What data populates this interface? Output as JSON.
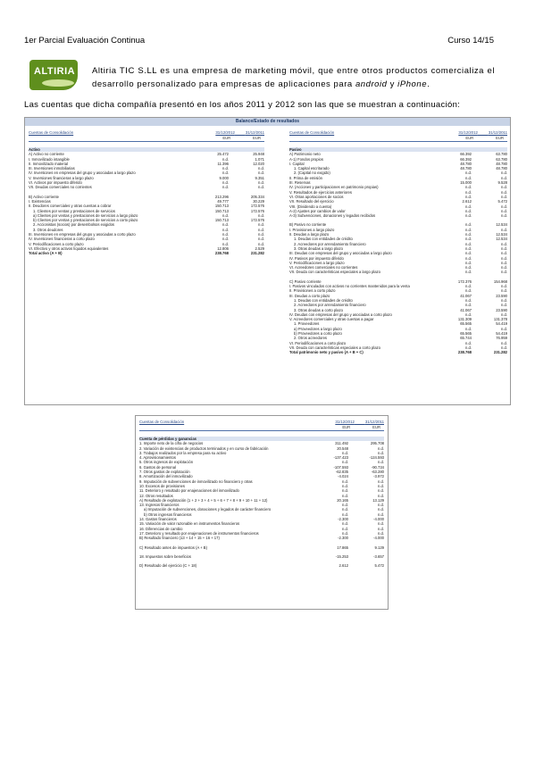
{
  "header": {
    "left": "1er Parcial Evaluación Continua",
    "right": "Curso 14/15"
  },
  "logo": {
    "text": "ALTIRIA"
  },
  "intro": {
    "part1": "Altiria TIC S.LL es una empresa de marketing móvil, que entre otros productos comercializa el desarrollo personalizado para empresas de aplicaciones para ",
    "android": "android",
    "and": " y ",
    "iphone": "iPhone",
    "end": "."
  },
  "lead": "Las cuentas que dicha compañía presentó en los años 2011 y 2012 son las que se muestran a continuación:",
  "balance": {
    "title": "Balance/Estado de resultados",
    "left": {
      "head_label": "Cuentas de Consolidación",
      "d1": "31/12/2012",
      "d2": "31/12/2011",
      "u1": "EUR",
      "u2": "EUR",
      "rows": [
        {
          "l": "Activo",
          "a": "",
          "b": "",
          "t": "sect"
        },
        {
          "l": "A) Activo no corriente",
          "a": "25.472",
          "b": "25.948",
          "t": ""
        },
        {
          "l": "I. Inmovilizado intangible",
          "a": "n.d.",
          "b": "1.071",
          "t": ""
        },
        {
          "l": "II. Inmovilizado material",
          "a": "11.396",
          "b": "12.020",
          "t": ""
        },
        {
          "l": "III. Inversiones inmobiliarias",
          "a": "n.d.",
          "b": "n.d.",
          "t": ""
        },
        {
          "l": "IV. Inversiones en empresas del grupo y asociadas a largo plazo",
          "a": "n.d.",
          "b": "n.d.",
          "t": ""
        },
        {
          "l": "V. Inversiones financieras a largo plazo",
          "a": "9.000",
          "b": "9.351",
          "t": ""
        },
        {
          "l": "VI. Activos por impuesto diferido",
          "a": "n.d.",
          "b": "n.d.",
          "t": ""
        },
        {
          "l": "VII. Deudas comerciales no corrientes",
          "a": "n.d.",
          "b": "n.d.",
          "t": ""
        },
        {
          "l": "B) Activo corriente",
          "a": "213.296",
          "b": "205.334",
          "t": "gap"
        },
        {
          "l": "I. Existencias",
          "a": "49.777",
          "b": "30.229",
          "t": ""
        },
        {
          "l": "II. Deudores comerciales y otras cuentas a cobrar",
          "a": "150.713",
          "b": "172.576",
          "t": ""
        },
        {
          "l": "1. Clientes por ventas y prestaciones de servicios",
          "a": "150.713",
          "b": "172.576",
          "t": "ind"
        },
        {
          "l": "a) Clientes por ventas y prestaciones de servicios a largo plazo",
          "a": "n.d.",
          "b": "n.d.",
          "t": "ind"
        },
        {
          "l": "b) Clientes por ventas y prestaciones de servicios a corto plazo",
          "a": "150.713",
          "b": "172.576",
          "t": "ind"
        },
        {
          "l": "2. Accionistas (socios) por desembolsos exigidos",
          "a": "n.d.",
          "b": "n.d.",
          "t": "ind"
        },
        {
          "l": "3. Otros deudores",
          "a": "n.d.",
          "b": "n.d.",
          "t": "ind"
        },
        {
          "l": "III. Inversiones en empresas del grupo y asociadas a corto plazo",
          "a": "n.d.",
          "b": "n.d.",
          "t": ""
        },
        {
          "l": "IV. Inversiones financieras a corto plazo",
          "a": "n.d.",
          "b": "n.d.",
          "t": ""
        },
        {
          "l": "V. Periodificaciones a corto plazo",
          "a": "n.d.",
          "b": "n.d.",
          "t": ""
        },
        {
          "l": "VI. Efectivo y otros activos líquidos equivalentes",
          "a": "12.806",
          "b": "2.529",
          "t": ""
        },
        {
          "l": "Total activo (A + B)",
          "a": "238.768",
          "b": "231.282",
          "t": "bold"
        }
      ]
    },
    "right": {
      "head_label": "Cuentas de Consolidación",
      "d1": "31/12/2012",
      "d2": "31/12/2011",
      "u1": "EUR",
      "u2": "EUR",
      "rows": [
        {
          "l": "Pasivo",
          "a": "",
          "b": "",
          "t": "sect"
        },
        {
          "l": "A) Patrimonio neto",
          "a": "66.392",
          "b": "63.780",
          "t": ""
        },
        {
          "l": "A-1) Fondos propios",
          "a": "66.392",
          "b": "63.780",
          "t": ""
        },
        {
          "l": "I. Capital",
          "a": "48.780",
          "b": "48.780",
          "t": ""
        },
        {
          "l": "1. Capital escriturado",
          "a": "48.780",
          "b": "48.780",
          "t": "ind"
        },
        {
          "l": "2. (Capital no exigido)",
          "a": "n.d.",
          "b": "n.d.",
          "t": "ind"
        },
        {
          "l": "II. Prima de emisión",
          "a": "n.d.",
          "b": "n.d.",
          "t": ""
        },
        {
          "l": "III. Reservas",
          "a": "15.000",
          "b": "9.528",
          "t": ""
        },
        {
          "l": "IV. (Acciones y participaciones en patrimonio propias)",
          "a": "n.d.",
          "b": "n.d.",
          "t": ""
        },
        {
          "l": "V. Resultados de ejercicios anteriores",
          "a": "n.d.",
          "b": "n.d.",
          "t": ""
        },
        {
          "l": "VI. Otras aportaciones de socios",
          "a": "n.d.",
          "b": "n.d.",
          "t": ""
        },
        {
          "l": "VII. Resultado del ejercicio",
          "a": "2.612",
          "b": "5.472",
          "t": ""
        },
        {
          "l": "VIII. (Dividendo a cuenta)",
          "a": "n.d.",
          "b": "n.d.",
          "t": ""
        },
        {
          "l": "A-2) Ajustes por cambios de valor",
          "a": "n.d.",
          "b": "n.d.",
          "t": ""
        },
        {
          "l": "A-3) Subvenciones, donaciones y legados recibidos",
          "a": "n.d.",
          "b": "n.d.",
          "t": ""
        },
        {
          "l": "B) Pasivo no corriente",
          "a": "n.d.",
          "b": "12.534",
          "t": "gap"
        },
        {
          "l": "I. Provisiones a largo plazo",
          "a": "n.d.",
          "b": "n.d.",
          "t": ""
        },
        {
          "l": "II. Deudas a largo plazo",
          "a": "n.d.",
          "b": "12.534",
          "t": ""
        },
        {
          "l": "1. Deudas con entidades de crédito",
          "a": "n.d.",
          "b": "12.534",
          "t": "ind"
        },
        {
          "l": "2. Acreedores por arrendamiento financiero",
          "a": "n.d.",
          "b": "n.d.",
          "t": "ind"
        },
        {
          "l": "3. Otras deudas a largo plazo",
          "a": "n.d.",
          "b": "n.d.",
          "t": "ind"
        },
        {
          "l": "III. Deudas con empresas del grupo y asociadas a largo plazo",
          "a": "n.d.",
          "b": "n.d.",
          "t": ""
        },
        {
          "l": "IV. Pasivos por impuesto diferido",
          "a": "n.d.",
          "b": "n.d.",
          "t": ""
        },
        {
          "l": "V. Periodificaciones a largo plazo",
          "a": "n.d.",
          "b": "n.d.",
          "t": ""
        },
        {
          "l": "VI. Acreedores comerciales no corrientes",
          "a": "n.d.",
          "b": "n.d.",
          "t": ""
        },
        {
          "l": "VII. Deuda con características especiales a largo plazo",
          "a": "n.d.",
          "b": "n.d.",
          "t": ""
        },
        {
          "l": "C) Pasivo corriente",
          "a": "172.376",
          "b": "154.968",
          "t": "gap"
        },
        {
          "l": "I. Pasivos vinculados con activos no corrientes mantenidos para la venta",
          "a": "n.d.",
          "b": "n.d.",
          "t": ""
        },
        {
          "l": "II. Provisiones a corto plazo",
          "a": "n.d.",
          "b": "n.d.",
          "t": ""
        },
        {
          "l": "III. Deudas a corto plazo",
          "a": "41.067",
          "b": "23.590",
          "t": ""
        },
        {
          "l": "1. Deudas con entidades de crédito",
          "a": "n.d.",
          "b": "n.d.",
          "t": "ind"
        },
        {
          "l": "2. Acreedores por arrendamiento financiero",
          "a": "n.d.",
          "b": "n.d.",
          "t": "ind"
        },
        {
          "l": "3. Otras deudas a corto plazo",
          "a": "41.067",
          "b": "23.590",
          "t": "ind"
        },
        {
          "l": "IV. Deudas con empresas del grupo y asociadas a corto plazo",
          "a": "n.d.",
          "b": "n.d.",
          "t": ""
        },
        {
          "l": "V. Acreedores comerciales y otras cuentas a pagar",
          "a": "131.309",
          "b": "131.378",
          "t": ""
        },
        {
          "l": "1. Proveedores",
          "a": "65.565",
          "b": "54.419",
          "t": "ind"
        },
        {
          "l": "a) Proveedores a largo plazo",
          "a": "n.d.",
          "b": "n.d.",
          "t": "ind"
        },
        {
          "l": "b) Proveedores a corto plazo",
          "a": "65.565",
          "b": "54.419",
          "t": "ind"
        },
        {
          "l": "2. Otros acreedores",
          "a": "65.744",
          "b": "76.959",
          "t": "ind"
        },
        {
          "l": "VI. Periodificaciones a corto plazo",
          "a": "n.d.",
          "b": "n.d.",
          "t": ""
        },
        {
          "l": "VII. Deuda con características especiales a corto plazo",
          "a": "n.d.",
          "b": "n.d.",
          "t": ""
        },
        {
          "l": "Total patrimonio neto y pasivo (A + B + C)",
          "a": "238.768",
          "b": "231.282",
          "t": "bold"
        }
      ]
    }
  },
  "results": {
    "head_label": "Cuentas de Consolidación",
    "d1": "31/12/2012",
    "d2": "31/12/2011",
    "u1": "EUR",
    "u2": "EUR",
    "rows": [
      {
        "l": "Cuenta de pérdidas y ganancias",
        "a": "",
        "b": "",
        "t": "sect"
      },
      {
        "l": "1. Importe neto de la cifra de negocios",
        "a": "311.492",
        "b": "295.708",
        "t": ""
      },
      {
        "l": "2. Variación de existencias de productos terminados y en curso de fabricación",
        "a": "20.548",
        "b": "n.d.",
        "t": ""
      },
      {
        "l": "3. Trabajos realizados por la empresa para su activo",
        "a": "n.d.",
        "b": "n.d.",
        "t": ""
      },
      {
        "l": "4. Aprovisionamientos",
        "a": "-137.423",
        "b": "-124.593",
        "t": ""
      },
      {
        "l": "5. Otros ingresos de explotación",
        "a": "n.d.",
        "b": "n.d.",
        "t": ""
      },
      {
        "l": "6. Gastos de personal",
        "a": "-107.593",
        "b": "-90.734",
        "t": ""
      },
      {
        "l": "7. Otros gastos de explotación",
        "a": "-62.835",
        "b": "-63.280",
        "t": ""
      },
      {
        "l": "8. Amortización del inmovilizado",
        "a": "-4.024",
        "b": "-3.972",
        "t": ""
      },
      {
        "l": "9. Imputación de subvenciones de inmovilizado no financiero y otras",
        "a": "n.d.",
        "b": "n.d.",
        "t": ""
      },
      {
        "l": "10. Excesos de provisiones",
        "a": "n.d.",
        "b": "n.d.",
        "t": ""
      },
      {
        "l": "11. Deterioro y resultado por enajenaciones del inmovilizado",
        "a": "n.d.",
        "b": "n.d.",
        "t": ""
      },
      {
        "l": "12. Otros resultados",
        "a": "n.d.",
        "b": "n.d.",
        "t": ""
      },
      {
        "l": "A) Resultado de explotación (1 + 2 + 3 + 4 + 5 + 6 + 7 + 8 + 9 + 10 + 11 + 12)",
        "a": "20.165",
        "b": "13.129",
        "t": ""
      },
      {
        "l": "13. Ingresos financieros",
        "a": "n.d.",
        "b": "n.d.",
        "t": ""
      },
      {
        "l": "a) Imputación de subvenciones, donaciones y legados de carácter financiero",
        "a": "n.d.",
        "b": "n.d.",
        "t": "ind"
      },
      {
        "l": "b) Otros ingresos financieros",
        "a": "n.d.",
        "b": "n.d.",
        "t": "ind"
      },
      {
        "l": "14. Gastos financieros",
        "a": "-2.300",
        "b": "-4.000",
        "t": ""
      },
      {
        "l": "15. Variación de valor razonable en instrumentos financieros",
        "a": "n.d.",
        "b": "n.d.",
        "t": ""
      },
      {
        "l": "16. Diferencias de cambio",
        "a": "n.d.",
        "b": "n.d.",
        "t": ""
      },
      {
        "l": "17. Deterioro y resultado por enajenaciones de instrumentos financieros",
        "a": "n.d.",
        "b": "n.d.",
        "t": ""
      },
      {
        "l": "B) Resultado financiero (13 + 14 + 15 + 16 + 17)",
        "a": "-2.300",
        "b": "-4.000",
        "t": ""
      },
      {
        "l": "C) Resultado antes de impuestos (A + B)",
        "a": "17.865",
        "b": "9.129",
        "t": "gap"
      },
      {
        "l": "18. Impuestos sobre beneficios",
        "a": "-15.253",
        "b": "-3.657",
        "t": "gap"
      },
      {
        "l": "D) Resultado del ejercicio (C + 18)",
        "a": "2.612",
        "b": "5.472",
        "t": "gap"
      }
    ]
  }
}
